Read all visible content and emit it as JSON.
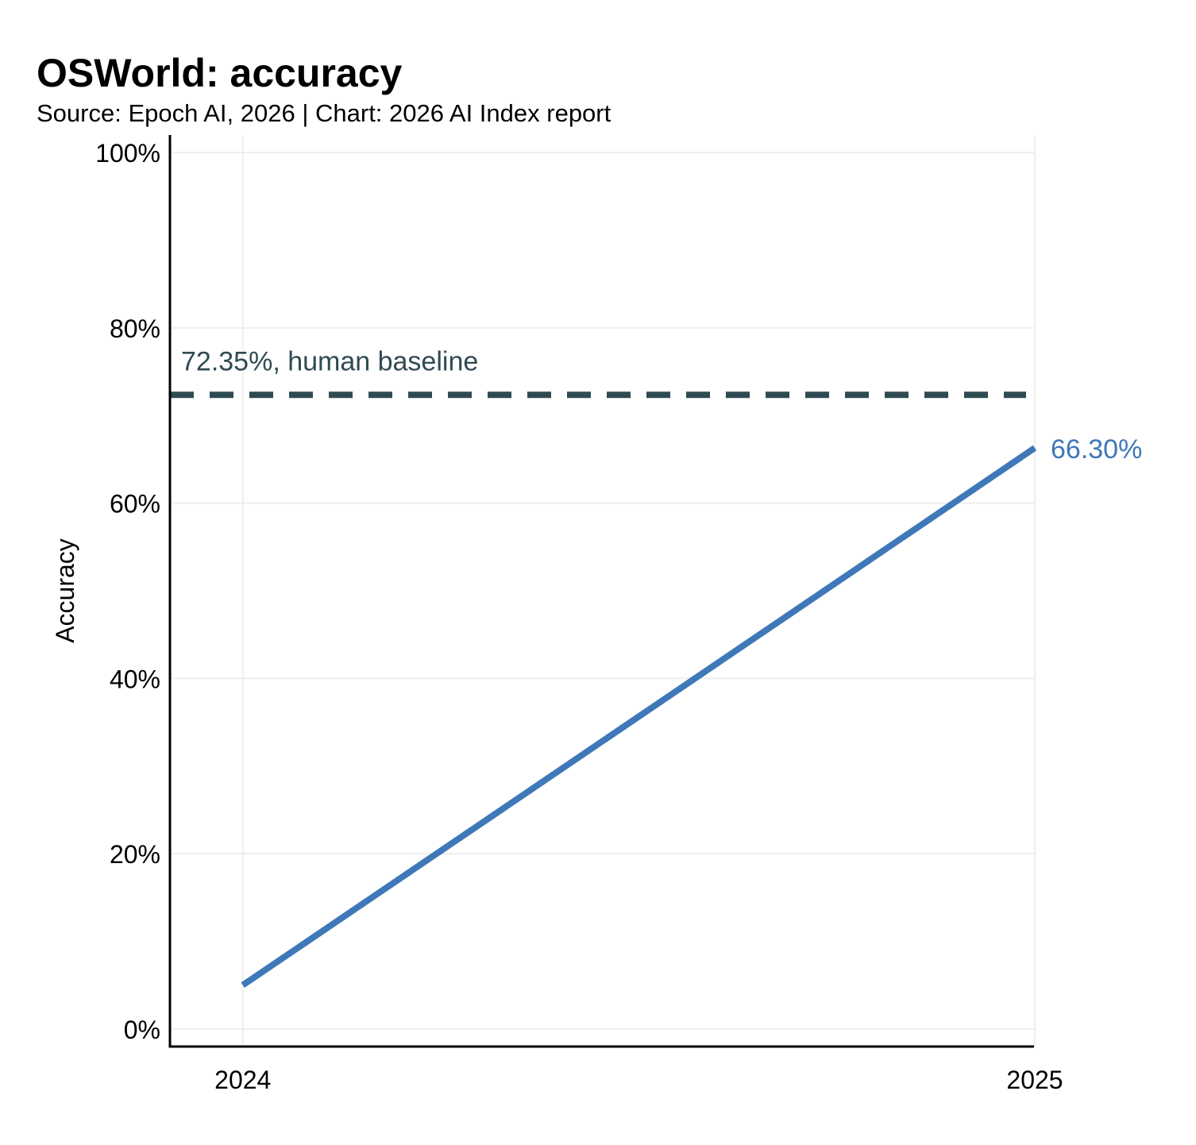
{
  "chart_data": {
    "type": "line",
    "title": "OSWorld: accuracy",
    "subtitle": "Source: Epoch AI, 2026 | Chart: 2026 AI Index report",
    "xlabel": "",
    "ylabel": "Accuracy",
    "x": [
      2024,
      2025
    ],
    "x_tick_labels": [
      "2024",
      "2025"
    ],
    "xlim": [
      2023.908,
      2024.999
    ],
    "ylim": [
      -2,
      102
    ],
    "y_ticks": [
      0,
      20,
      40,
      60,
      80,
      100
    ],
    "y_tick_labels": [
      "0%",
      "20%",
      "40%",
      "60%",
      "80%",
      "100%"
    ],
    "grid": true,
    "series": [
      {
        "name": "OSWorld accuracy",
        "x": [
          2024,
          2025
        ],
        "values": [
          5.0,
          66.3
        ],
        "end_label": "66.30%",
        "color": "#3f78b8"
      }
    ],
    "reference_lines": [
      {
        "name": "human baseline",
        "value": 72.35,
        "label": "72.35%, human baseline",
        "style": "dashed",
        "color": "#2f4a52"
      }
    ]
  },
  "colors": {
    "axis": "#000000",
    "grid": "#eeeeee",
    "series": "#3f78b8",
    "baseline": "#2f4a52"
  }
}
